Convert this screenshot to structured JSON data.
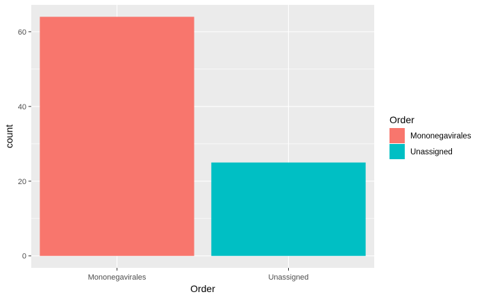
{
  "chart_data": {
    "type": "bar",
    "categories": [
      "Mononegavirales",
      "Unassigned"
    ],
    "values": [
      64,
      25
    ],
    "colors": [
      "#F8766D",
      "#00BFC4"
    ],
    "xlabel": "Order",
    "ylabel": "count",
    "ylim": [
      -3.2,
      67.2
    ],
    "yticks": [
      0,
      20,
      40,
      60
    ],
    "yticks_labels": [
      "0",
      "20",
      "40",
      "60"
    ],
    "grid": true,
    "panel_background": "#EBEBEB",
    "grid_color": "#FFFFFF",
    "legend": {
      "title": "Order",
      "position": "right",
      "entries": [
        "Mononegavirales",
        "Unassigned"
      ]
    }
  }
}
